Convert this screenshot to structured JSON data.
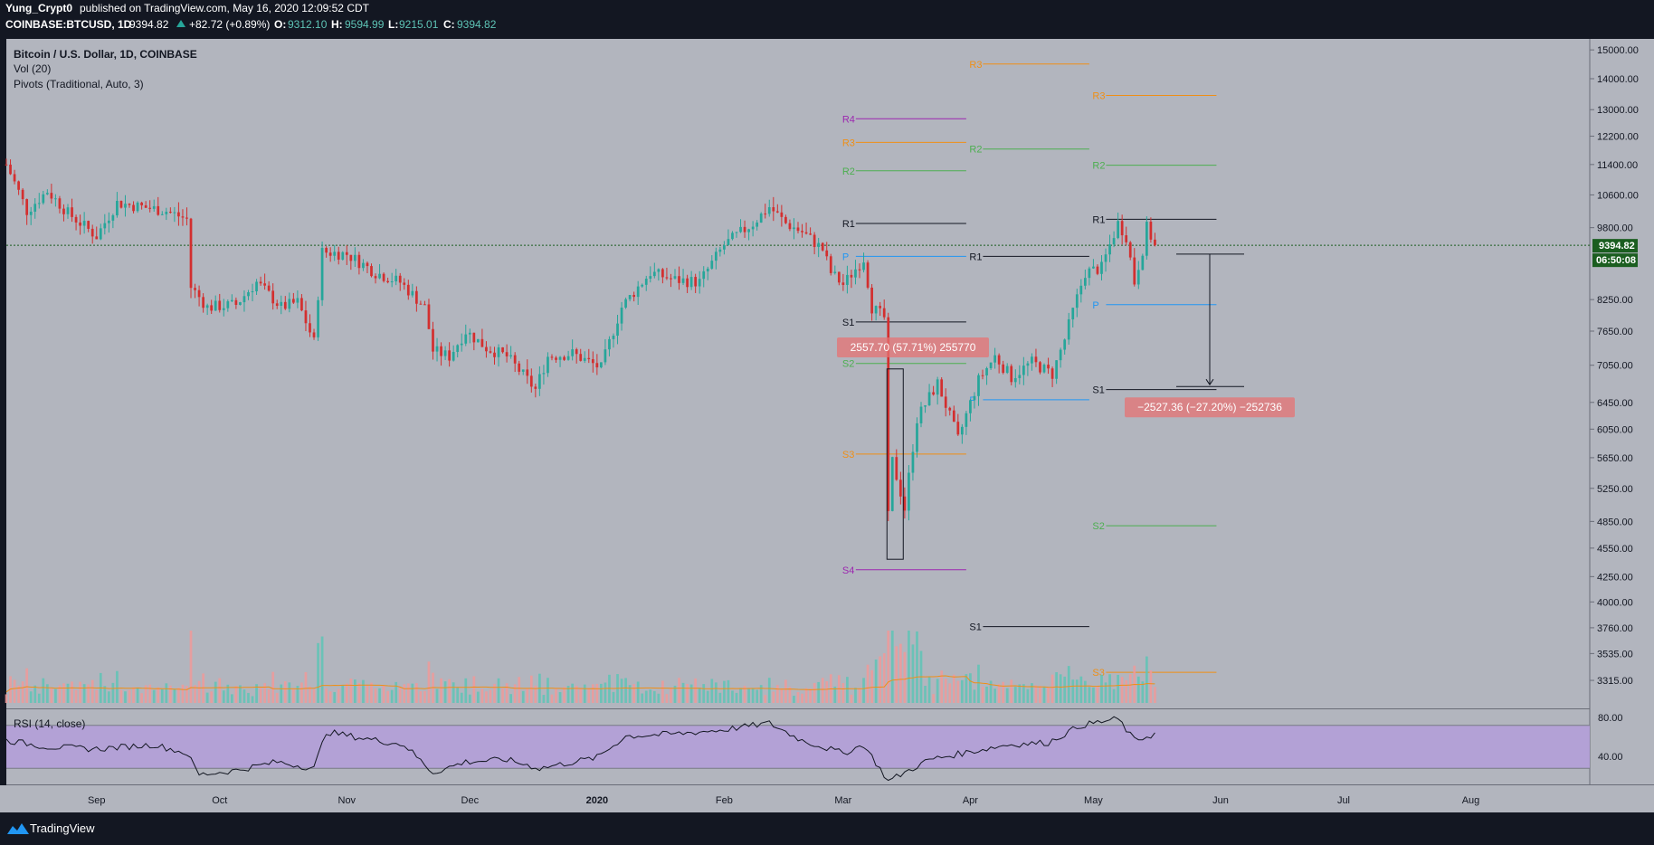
{
  "header": {
    "author": "Yung_Crypt0",
    "published_text": "published on TradingView.com, May 16, 2020 12:09:52 CDT",
    "symbol": "COINBASE:BTCUSD, 1D",
    "last": "9394.82",
    "change": "+82.72 (+0.89%)",
    "o_label": "O:",
    "o": "9312.10",
    "h_label": "H:",
    "h": "9594.99",
    "l_label": "L:",
    "l": "9215.01",
    "c_label": "C:",
    "c": "9394.82"
  },
  "legend": {
    "title": "Bitcoin / U.S. Dollar, 1D, COINBASE",
    "vol": "Vol (20)",
    "pivots": "Pivots (Traditional, Auto, 3)"
  },
  "rsi": {
    "label": "RSI (14, close)",
    "ticks": [
      "80.00",
      "40.00"
    ]
  },
  "price_tag": {
    "price": "9394.82",
    "countdown": "06:50:08"
  },
  "footer": {
    "brand": "TradingView"
  },
  "colors": {
    "bg": "#b2b5be",
    "frame": "#131722",
    "up": "#26a69a",
    "down": "#d32f2f",
    "rsi_band": "#b39ddb",
    "accent_green": "#1b5e20"
  },
  "measures": [
    {
      "label": "2557.70 (57.71%) 255770",
      "from_date": "2020-03-13",
      "from_price": 4430,
      "to_price": 6988
    },
    {
      "label": "−2527.36 (−27.20%) −252736",
      "from_date": "2020-05-20",
      "from_price": 9200,
      "to_price": 6700
    }
  ],
  "chart_data": {
    "type": "candlestick",
    "title": "Bitcoin / U.S. Dollar, 1D, COINBASE",
    "y_scale": "log",
    "ylim": [
      3100,
      15400
    ],
    "x_range": [
      "2019-08-10",
      "2020-08-30"
    ],
    "y_ticks": [
      15000,
      14000,
      13000,
      12200,
      11400,
      10600,
      9800,
      8250,
      7650,
      7050,
      6450,
      6050,
      5650,
      5250,
      4850,
      4550,
      4250,
      4000,
      3760,
      3535,
      3315
    ],
    "y_tick_labels": [
      "15000.00",
      "14000.00",
      "13000.00",
      "12200.00",
      "11400.00",
      "10600.00",
      "9800.00",
      "8250.00",
      "7650.00",
      "7050.00",
      "6450.00",
      "6050.00",
      "5650.00",
      "5250.00",
      "4850.00",
      "4550.00",
      "4250.00",
      "4000.00",
      "3760.00",
      "3535.00",
      "3315.00"
    ],
    "x_ticks": [
      {
        "label": "Sep",
        "date": "2019-09-01"
      },
      {
        "label": "Oct",
        "date": "2019-10-01"
      },
      {
        "label": "Nov",
        "date": "2019-11-01"
      },
      {
        "label": "Dec",
        "date": "2019-12-01"
      },
      {
        "label": "2020",
        "date": "2020-01-01"
      },
      {
        "label": "Feb",
        "date": "2020-02-01"
      },
      {
        "label": "Mar",
        "date": "2020-03-01"
      },
      {
        "label": "Apr",
        "date": "2020-04-01"
      },
      {
        "label": "May",
        "date": "2020-05-01"
      },
      {
        "label": "Jun",
        "date": "2020-06-01"
      },
      {
        "label": "Jul",
        "date": "2020-07-01"
      },
      {
        "label": "Aug",
        "date": "2020-08-01"
      }
    ],
    "start_date": "2019-08-10",
    "last_price": 9394.82,
    "close_anchors": [
      [
        "2019-08-10",
        11400
      ],
      [
        "2019-08-15",
        10200
      ],
      [
        "2019-08-20",
        10700
      ],
      [
        "2019-08-25",
        10150
      ],
      [
        "2019-09-01",
        9600
      ],
      [
        "2019-09-06",
        10400
      ],
      [
        "2019-09-12",
        10300
      ],
      [
        "2019-09-18",
        10200
      ],
      [
        "2019-09-23",
        10000
      ],
      [
        "2019-09-24",
        8500
      ],
      [
        "2019-09-28",
        8100
      ],
      [
        "2019-10-05",
        8150
      ],
      [
        "2019-10-10",
        8600
      ],
      [
        "2019-10-16",
        8100
      ],
      [
        "2019-10-20",
        8200
      ],
      [
        "2019-10-24",
        7450
      ],
      [
        "2019-10-26",
        9250
      ],
      [
        "2019-11-01",
        9200
      ],
      [
        "2019-11-08",
        8800
      ],
      [
        "2019-11-14",
        8600
      ],
      [
        "2019-11-20",
        8100
      ],
      [
        "2019-11-22",
        7300
      ],
      [
        "2019-11-26",
        7200
      ],
      [
        "2019-11-30",
        7650
      ],
      [
        "2019-12-05",
        7350
      ],
      [
        "2019-12-10",
        7200
      ],
      [
        "2019-12-17",
        6650
      ],
      [
        "2019-12-20",
        7200
      ],
      [
        "2019-12-26",
        7250
      ],
      [
        "2020-01-02",
        7000
      ],
      [
        "2020-01-07",
        8100
      ],
      [
        "2020-01-14",
        8800
      ],
      [
        "2020-01-20",
        8650
      ],
      [
        "2020-01-26",
        8600
      ],
      [
        "2020-02-01",
        9400
      ],
      [
        "2020-02-08",
        9900
      ],
      [
        "2020-02-12",
        10300
      ],
      [
        "2020-02-16",
        9900
      ],
      [
        "2020-02-20",
        9700
      ],
      [
        "2020-02-25",
        9300
      ],
      [
        "2020-02-27",
        8800
      ],
      [
        "2020-03-01",
        8550
      ],
      [
        "2020-03-06",
        9100
      ],
      [
        "2020-03-08",
        8100
      ],
      [
        "2020-03-11",
        7900
      ],
      [
        "2020-03-12",
        4900
      ],
      [
        "2020-03-13",
        5600
      ],
      [
        "2020-03-16",
        5000
      ],
      [
        "2020-03-19",
        6200
      ],
      [
        "2020-03-24",
        6750
      ],
      [
        "2020-03-29",
        5900
      ],
      [
        "2020-04-03",
        6800
      ],
      [
        "2020-04-07",
        7200
      ],
      [
        "2020-04-11",
        6850
      ],
      [
        "2020-04-16",
        7100
      ],
      [
        "2020-04-21",
        6900
      ],
      [
        "2020-04-24",
        7500
      ],
      [
        "2020-04-29",
        8800
      ],
      [
        "2020-05-03",
        8900
      ],
      [
        "2020-05-07",
        9900
      ],
      [
        "2020-05-09",
        9600
      ],
      [
        "2020-05-11",
        8600
      ],
      [
        "2020-05-13",
        9300
      ],
      [
        "2020-05-14",
        9800
      ],
      [
        "2020-05-16",
        9394.82
      ]
    ],
    "pivot_sets": [
      {
        "from": "2020-03-01",
        "to": "2020-03-31",
        "levels": [
          {
            "name": "R4",
            "value": 12720,
            "color": "#9c27b0"
          },
          {
            "name": "R3",
            "value": 12020,
            "color": "#ef8f16"
          },
          {
            "name": "R2",
            "value": 11230,
            "color": "#4caf50"
          },
          {
            "name": "R1",
            "value": 9900,
            "color": "#131722"
          },
          {
            "name": "P",
            "value": 9150,
            "color": "#2196f3"
          },
          {
            "name": "S1",
            "value": 7820,
            "color": "#131722"
          },
          {
            "name": "S2",
            "value": 7080,
            "color": "#4caf50"
          },
          {
            "name": "S3",
            "value": 5700,
            "color": "#ef8f16"
          },
          {
            "name": "S4",
            "value": 4320,
            "color": "#9c27b0"
          }
        ]
      },
      {
        "from": "2020-04-01",
        "to": "2020-04-30",
        "levels": [
          {
            "name": "R3",
            "value": 14500,
            "color": "#ef8f16"
          },
          {
            "name": "R2",
            "value": 11830,
            "color": "#4caf50"
          },
          {
            "name": "R1",
            "value": 9150,
            "color": "#131722"
          },
          {
            "name": "P",
            "value": 6490,
            "color": "#2196f3"
          },
          {
            "name": "S1",
            "value": 3770,
            "color": "#131722"
          }
        ]
      },
      {
        "from": "2020-05-01",
        "to": "2020-05-31",
        "levels": [
          {
            "name": "R3",
            "value": 13450,
            "color": "#ef8f16"
          },
          {
            "name": "R2",
            "value": 11380,
            "color": "#4caf50"
          },
          {
            "name": "R1",
            "value": 10000,
            "color": "#131722"
          },
          {
            "name": "P",
            "value": 8150,
            "color": "#2196f3"
          },
          {
            "name": "S1",
            "value": 6650,
            "color": "#131722"
          },
          {
            "name": "S2",
            "value": 4800,
            "color": "#4caf50"
          },
          {
            "name": "S3",
            "value": 3380,
            "color": "#ef8f16"
          }
        ]
      }
    ],
    "rsi": {
      "levels": [
        70,
        30
      ],
      "anchors": [
        [
          "2019-08-10",
          56
        ],
        [
          "2019-08-20",
          50
        ],
        [
          "2019-09-01",
          48
        ],
        [
          "2019-09-15",
          52
        ],
        [
          "2019-09-23",
          44
        ],
        [
          "2019-09-26",
          24
        ],
        [
          "2019-10-05",
          28
        ],
        [
          "2019-10-15",
          36
        ],
        [
          "2019-10-24",
          30
        ],
        [
          "2019-10-27",
          64
        ],
        [
          "2019-11-05",
          58
        ],
        [
          "2019-11-15",
          52
        ],
        [
          "2019-11-22",
          26
        ],
        [
          "2019-11-30",
          36
        ],
        [
          "2019-12-10",
          38
        ],
        [
          "2019-12-18",
          30
        ],
        [
          "2020-01-01",
          40
        ],
        [
          "2020-01-08",
          60
        ],
        [
          "2020-01-20",
          62
        ],
        [
          "2020-02-01",
          66
        ],
        [
          "2020-02-12",
          72
        ],
        [
          "2020-02-20",
          56
        ],
        [
          "2020-03-01",
          44
        ],
        [
          "2020-03-06",
          52
        ],
        [
          "2020-03-12",
          18
        ],
        [
          "2020-03-16",
          26
        ],
        [
          "2020-03-22",
          38
        ],
        [
          "2020-03-30",
          44
        ],
        [
          "2020-04-10",
          52
        ],
        [
          "2020-04-20",
          54
        ],
        [
          "2020-04-28",
          70
        ],
        [
          "2020-05-07",
          76
        ],
        [
          "2020-05-11",
          56
        ],
        [
          "2020-05-16",
          62
        ]
      ]
    },
    "volume_ma_note": "Vol (20)"
  }
}
